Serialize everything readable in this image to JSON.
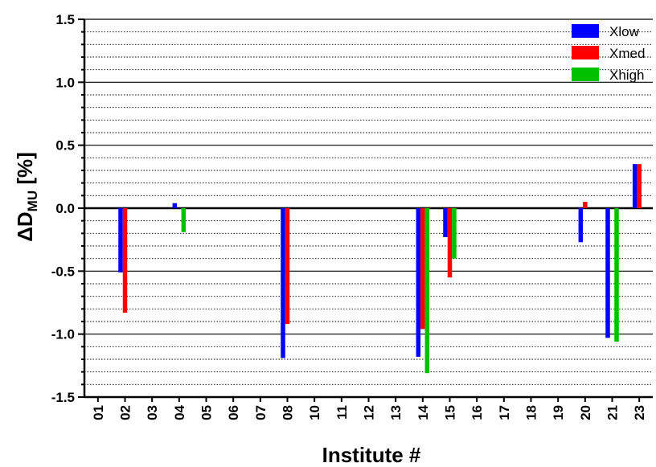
{
  "chart_data": {
    "type": "bar",
    "categories": [
      "01",
      "02",
      "03",
      "04",
      "05",
      "06",
      "07",
      "08",
      "10",
      "11",
      "12",
      "13",
      "14",
      "15",
      "16",
      "17",
      "18",
      "19",
      "20",
      "21",
      "23"
    ],
    "series": [
      {
        "name": "Xlow",
        "color": "#0000ff",
        "values": [
          null,
          -0.51,
          null,
          0.04,
          null,
          null,
          null,
          -1.19,
          null,
          null,
          null,
          null,
          -1.18,
          -0.23,
          null,
          null,
          null,
          null,
          -0.27,
          -1.03,
          0.35
        ]
      },
      {
        "name": "Xmed",
        "color": "#ff0000",
        "values": [
          null,
          -0.83,
          null,
          null,
          null,
          null,
          null,
          -0.92,
          null,
          null,
          null,
          null,
          -0.96,
          -0.55,
          null,
          null,
          null,
          null,
          0.05,
          null,
          0.35
        ]
      },
      {
        "name": "Xhigh",
        "color": "#00c000",
        "values": [
          null,
          null,
          null,
          -0.19,
          null,
          null,
          null,
          null,
          null,
          null,
          null,
          null,
          -1.31,
          -0.4,
          null,
          null,
          null,
          null,
          null,
          -1.06,
          null
        ]
      }
    ],
    "ylabel_main": "ΔD",
    "ylabel_sub": "MU",
    "ylabel_tail": " [%]",
    "xlabel": "Institute #",
    "ylim": [
      -1.5,
      1.5
    ],
    "yticks": [
      "-1.5",
      "-1.0",
      "-0.5",
      "0.0",
      "0.5",
      "1.0",
      "1.5"
    ],
    "ytick_values": [
      -1.5,
      -1.0,
      -0.5,
      0.0,
      0.5,
      1.0,
      1.5
    ],
    "major_grid_step": 0.5,
    "minor_grid_step": 0.1,
    "legend_position": "top-right"
  }
}
